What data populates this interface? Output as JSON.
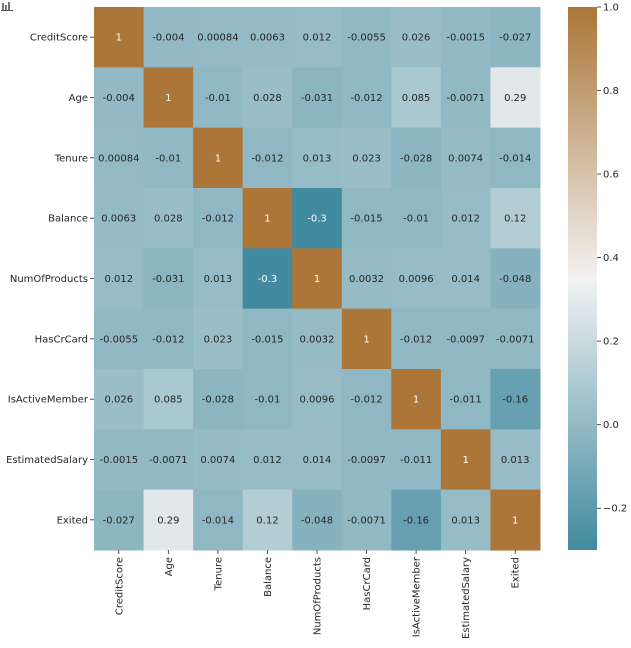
{
  "chart_data": {
    "type": "heatmap",
    "title": "",
    "xlabel": "",
    "ylabel": "",
    "labels": [
      "CreditScore",
      "Age",
      "Tenure",
      "Balance",
      "NumOfProducts",
      "HasCrCard",
      "IsActiveMember",
      "EstimatedSalary",
      "Exited"
    ],
    "values": [
      [
        1,
        -0.004,
        0.00084,
        0.0063,
        0.012,
        -0.0055,
        0.026,
        -0.0015,
        -0.027
      ],
      [
        -0.004,
        1,
        -0.01,
        0.028,
        -0.031,
        -0.012,
        0.085,
        -0.0071,
        0.29
      ],
      [
        0.00084,
        -0.01,
        1,
        -0.012,
        0.013,
        0.023,
        -0.028,
        0.0074,
        -0.014
      ],
      [
        0.0063,
        0.028,
        -0.012,
        1,
        -0.3,
        -0.015,
        -0.01,
        0.012,
        0.12
      ],
      [
        0.012,
        -0.031,
        0.013,
        -0.3,
        1,
        0.0032,
        0.0096,
        0.014,
        -0.048
      ],
      [
        -0.0055,
        -0.012,
        0.023,
        -0.015,
        0.0032,
        1,
        -0.012,
        -0.0097,
        -0.0071
      ],
      [
        0.026,
        0.085,
        -0.028,
        -0.01,
        0.0096,
        -0.012,
        1,
        -0.011,
        -0.16
      ],
      [
        -0.0015,
        -0.0071,
        0.0074,
        0.012,
        0.014,
        -0.0097,
        -0.011,
        1,
        0.013
      ],
      [
        -0.027,
        0.29,
        -0.014,
        0.12,
        -0.048,
        -0.0071,
        -0.16,
        0.013,
        1
      ]
    ],
    "annotations": [
      [
        "1",
        "-0.004",
        "0.00084",
        "0.0063",
        "0.012",
        "-0.0055",
        "0.026",
        "-0.0015",
        "-0.027"
      ],
      [
        "-0.004",
        "1",
        "-0.01",
        "0.028",
        "-0.031",
        "-0.012",
        "0.085",
        "-0.0071",
        "0.29"
      ],
      [
        "0.00084",
        "-0.01",
        "1",
        "-0.012",
        "0.013",
        "0.023",
        "-0.028",
        "0.0074",
        "-0.014"
      ],
      [
        "0.0063",
        "0.028",
        "-0.012",
        "1",
        "-0.3",
        "-0.015",
        "-0.01",
        "0.012",
        "0.12"
      ],
      [
        "0.012",
        "-0.031",
        "0.013",
        "-0.3",
        "1",
        "0.0032",
        "0.0096",
        "0.014",
        "-0.048"
      ],
      [
        "-0.0055",
        "-0.012",
        "0.023",
        "-0.015",
        "0.0032",
        "1",
        "-0.012",
        "-0.0097",
        "-0.0071"
      ],
      [
        "0.026",
        "0.085",
        "-0.028",
        "-0.01",
        "0.0096",
        "-0.012",
        "1",
        "-0.011",
        "-0.16"
      ],
      [
        "-0.0015",
        "-0.0071",
        "0.0074",
        "0.012",
        "0.014",
        "-0.0097",
        "-0.011",
        "1",
        "0.013"
      ],
      [
        "-0.027",
        "0.29",
        "-0.014",
        "0.12",
        "-0.048",
        "-0.0071",
        "-0.16",
        "0.013",
        "1"
      ]
    ],
    "colorbar": {
      "vmin": -0.3,
      "vmax": 1.0,
      "center": 0.35,
      "ticks": [
        -0.2,
        0.0,
        0.2,
        0.4,
        0.6,
        0.8,
        1.0
      ],
      "tick_labels": [
        "−0.2",
        "0.0",
        "0.2",
        "0.4",
        "0.6",
        "0.8",
        "1.0"
      ],
      "colors": {
        "low": "#418a9f",
        "center": "#f2f2f2",
        "high": "#ab7638"
      }
    },
    "grid": false,
    "legend": "colorbar-right"
  },
  "toolbar": {
    "icon": "bar-chart-icon"
  }
}
